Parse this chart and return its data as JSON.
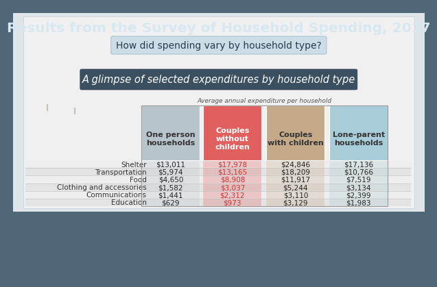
{
  "title": "Results from the Survey of Household Spending, 2017",
  "subtitle": "How did spending vary by household type?",
  "section_title": "A glimpse of selected expenditures by household type",
  "avg_label": "Average annual expenditure per household",
  "bg_color": "#4e6878",
  "light_bg": "#e8eef2",
  "subtitle_bg": "#ccdde8",
  "section_bar_color": "#3a5060",
  "columns": [
    "One person\nhouseholds",
    "Couples\nwithout\nchildren",
    "Couples\nwith children",
    "Lone-parent\nhouseholds"
  ],
  "col_colors": [
    "#b8c4cc",
    "#e06060",
    "#c4aa88",
    "#a8ccd8"
  ],
  "col_text_colors": [
    "#333333",
    "#ffffff",
    "#333333",
    "#333333"
  ],
  "rows": [
    "Shelter",
    "Transportation",
    "Food",
    "Clothing and accessories",
    "Communications",
    "Education"
  ],
  "row_alt_colors": [
    "#eeeeee",
    "#e4e4e4"
  ],
  "data": [
    [
      "$13,011",
      "$17,978",
      "$24,846",
      "$17,136"
    ],
    [
      "$5,974",
      "$13,165",
      "$18,209",
      "$10,766"
    ],
    [
      "$4,650",
      "$8,908",
      "$11,917",
      "$7,519"
    ],
    [
      "$1,582",
      "$3,037",
      "$5,244",
      "$3,134"
    ],
    [
      "$1,441",
      "$2,312",
      "$3,110",
      "$2,399"
    ],
    [
      "$629",
      "$973",
      "$3,129",
      "$1,983"
    ]
  ],
  "title_color": "#d8e8f0",
  "title_fontsize": 14.5,
  "subtitle_fontsize": 10,
  "section_title_fontsize": 10.5,
  "avg_label_fontsize": 6.5,
  "data_fontsize": 7.5,
  "col_header_fontsize": 8,
  "row_label_fontsize": 7.5
}
